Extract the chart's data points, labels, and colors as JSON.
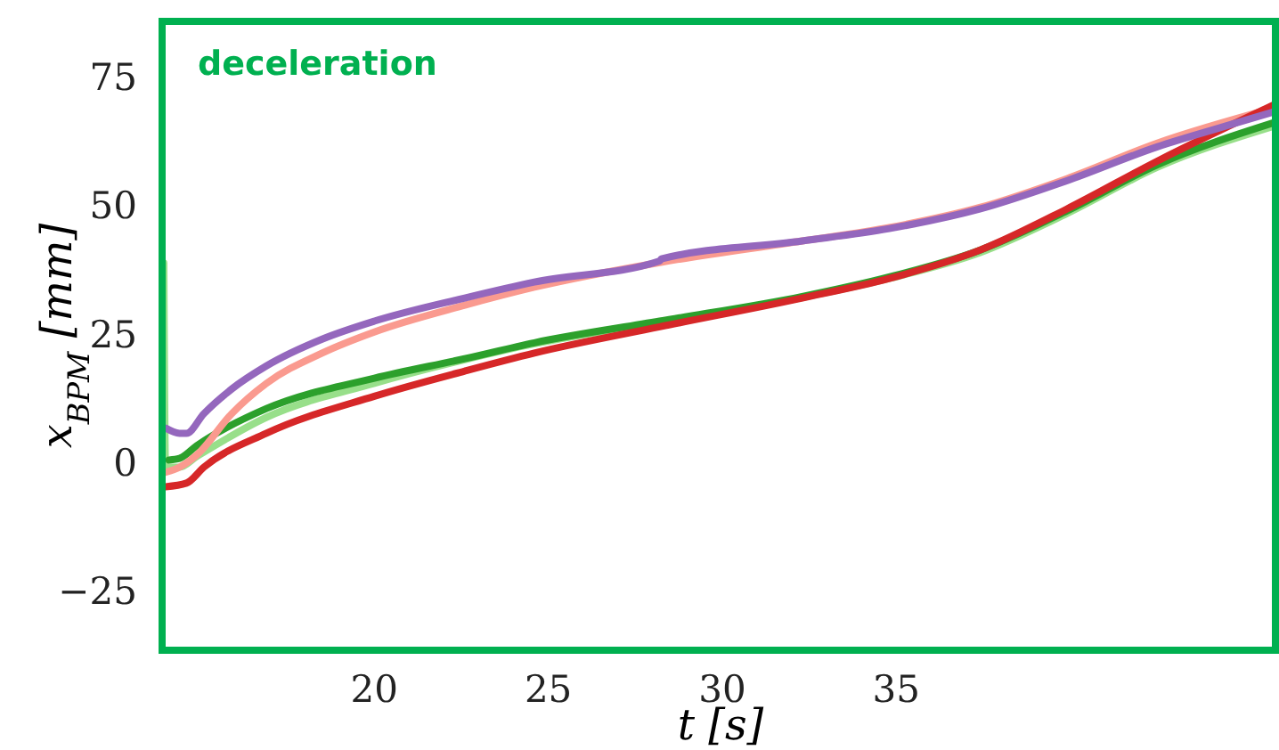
{
  "chart_data": {
    "type": "line",
    "xlabel": "t [s]",
    "ylabel": "x$_{BPM}$ [mm]",
    "annotations": [
      "deceleration"
    ],
    "xlim": [
      13.9,
      45.9
    ],
    "ylim": [
      -36.3,
      86
    ],
    "xticks": [
      20,
      25,
      30,
      35
    ],
    "yticks": [
      -25,
      0,
      25,
      50,
      75
    ],
    "grid": false,
    "marker": "none",
    "line_style": "solid",
    "series": [
      {
        "color": "#98df8a",
        "x": [
          13.95,
          14.0,
          14.4,
          14.9,
          16.9,
          20,
          22.6,
          24.6,
          28.2,
          32.3,
          34.8,
          37.4,
          39.9,
          42.5,
          45.9
        ],
        "values": [
          39,
          -0.7,
          -0.7,
          1.4,
          9.0,
          15.6,
          20.2,
          23.3,
          27.5,
          32.3,
          36.0,
          41.0,
          48.6,
          57.6,
          65.7
        ]
      },
      {
        "color": "#2ca02c",
        "x": [
          14.1,
          14.4,
          14.9,
          16.9,
          20,
          22.6,
          24.6,
          28.2,
          32.3,
          34.8,
          37.4,
          39.9,
          42.5,
          45.9
        ],
        "values": [
          0.7,
          1.0,
          3.5,
          10.7,
          16.6,
          20.4,
          23.5,
          27.7,
          32.5,
          36.3,
          41.5,
          49.1,
          58.1,
          66.4
        ]
      },
      {
        "color": "#fa9a8f",
        "x": [
          14.0,
          14.4,
          14.9,
          15.9,
          16.9,
          18.5,
          20,
          22.6,
          24.6,
          28.2,
          32.3,
          34.8,
          37.4,
          39.9,
          42.5,
          45.9
        ],
        "values": [
          -1.7,
          -0.7,
          1.7,
          9.7,
          15.6,
          21.5,
          25.6,
          30.8,
          34.3,
          39.1,
          43.3,
          45.9,
          49.8,
          55.4,
          62.3,
          69.2
        ]
      },
      {
        "color": "#d62728",
        "x": [
          14.0,
          14.6,
          15.1,
          16.9,
          20,
          22.6,
          24.6,
          28.2,
          32.3,
          34.8,
          37.4,
          39.9,
          42.5,
          45.9
        ],
        "values": [
          -4.5,
          -3.8,
          -0.7,
          5.9,
          13.1,
          18.0,
          21.5,
          26.6,
          32.2,
          36.0,
          41.5,
          49.5,
          58.8,
          69.9
        ]
      },
      {
        "color": "#9467bd",
        "x": [
          14.0,
          14.4,
          14.6,
          15.1,
          15.9,
          16.9,
          18.5,
          20,
          22.6,
          24.6,
          28.2,
          28.25,
          32.3,
          34.8,
          37.4,
          39.9,
          42.5,
          44.5,
          45.9
        ],
        "values": [
          6.9,
          5.9,
          5.9,
          9.7,
          14.5,
          19.0,
          24.2,
          27.7,
          32.2,
          35.3,
          39.4,
          39.8,
          43.3,
          45.7,
          49.5,
          55.0,
          61.6,
          65.7,
          68.5
        ]
      }
    ]
  }
}
